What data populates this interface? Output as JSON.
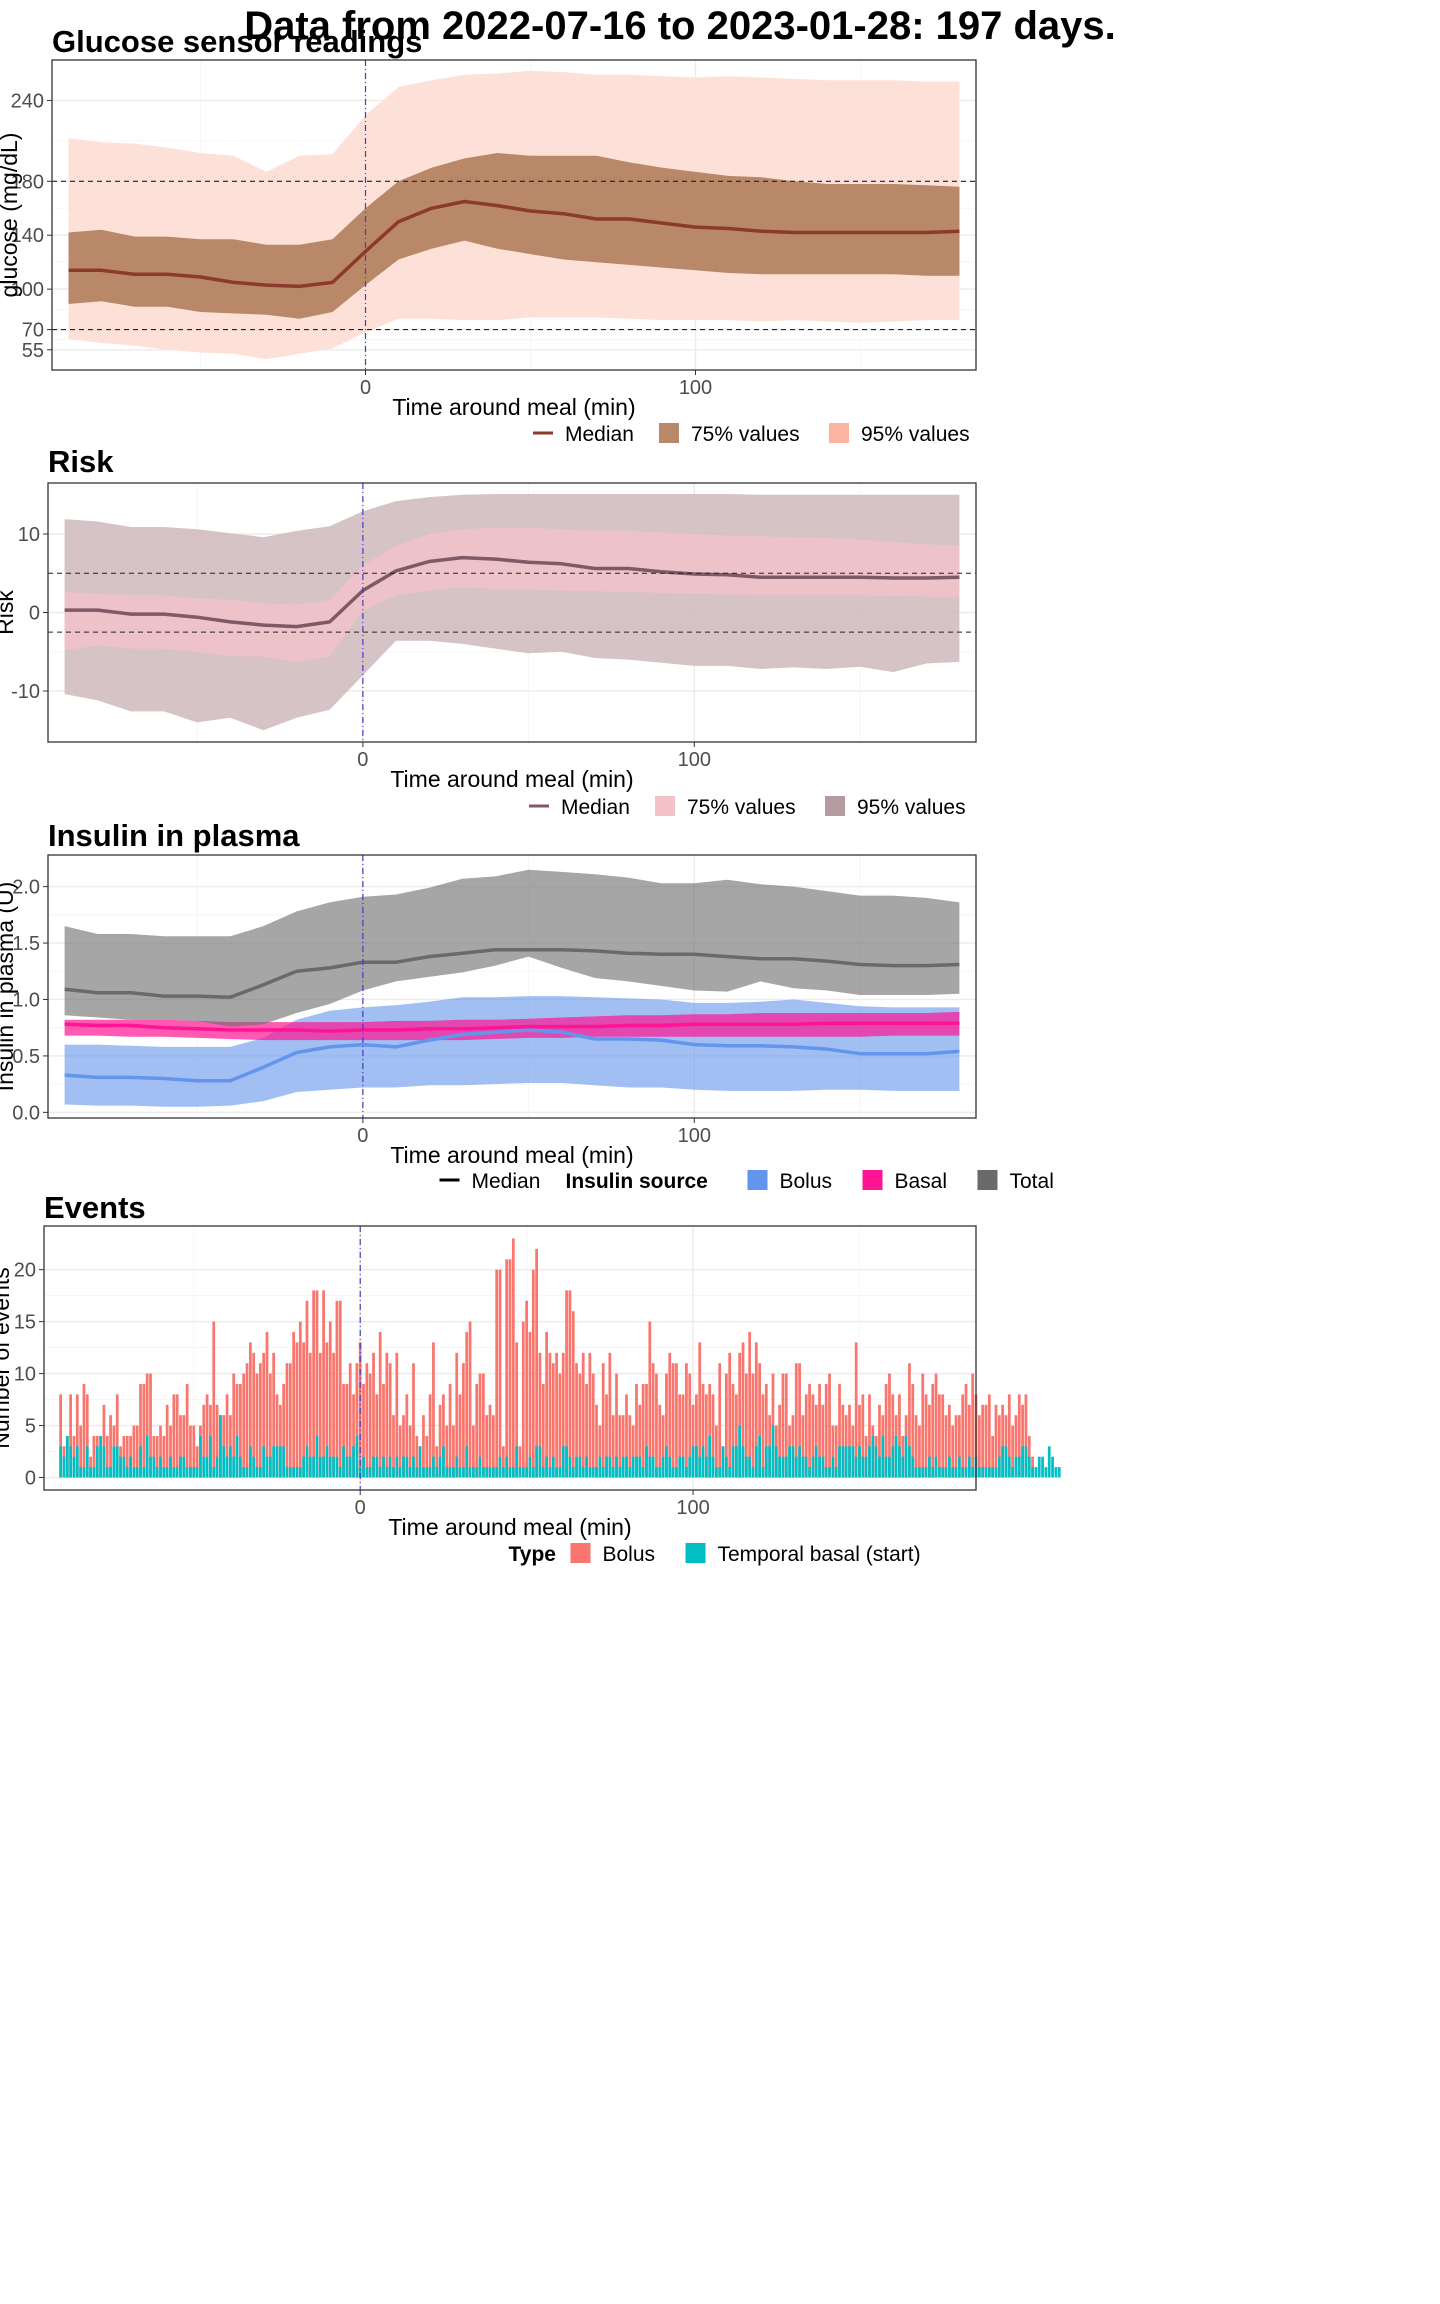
{
  "title": "Data from 2022-07-16 to 2023-01-28: 197 days.",
  "colors": {
    "glucose_median": "#8b3a2b",
    "glucose_75": "#b88868",
    "glucose_95": "#fde0d8",
    "risk_median": "#7d5a66",
    "risk_75": "#f4c2c9",
    "risk_95": "#cfb8bc",
    "bolus": "#6495ed",
    "basal": "#ff1493",
    "total": "#6a6a6a",
    "events_bolus": "#f8766d",
    "events_temp_basal": "#00bfc4",
    "meal_line": "#4b3bbf"
  },
  "chart_data": [
    {
      "id": "glucose",
      "type": "area",
      "title": "Glucose sensor readings",
      "xlabel": "Time around meal (min)",
      "ylabel": "glucose (mg/dL)",
      "xlim": [
        -95,
        185
      ],
      "ylim": [
        40,
        270
      ],
      "xticks": [
        0,
        100
      ],
      "yticks": [
        55,
        70,
        100,
        140,
        180,
        240
      ],
      "hlines": [
        70,
        180
      ],
      "vline": 0,
      "legend": [
        "Median",
        "75% values",
        "95% values"
      ],
      "x": [
        -90,
        -80,
        -70,
        -60,
        -50,
        -40,
        -30,
        -20,
        -10,
        0,
        10,
        20,
        30,
        40,
        50,
        60,
        70,
        80,
        90,
        100,
        110,
        120,
        130,
        140,
        150,
        160,
        170,
        180
      ],
      "median": [
        114,
        114,
        111,
        111,
        109,
        105,
        103,
        102,
        105,
        128,
        150,
        160,
        165,
        162,
        158,
        156,
        152,
        152,
        149,
        146,
        145,
        143,
        142,
        142,
        142,
        142,
        142,
        143
      ],
      "p75_low": [
        89,
        91,
        87,
        87,
        83,
        82,
        81,
        78,
        83,
        103,
        122,
        130,
        136,
        130,
        126,
        122,
        120,
        118,
        116,
        114,
        112,
        111,
        111,
        111,
        111,
        111,
        110,
        110
      ],
      "p75_high": [
        142,
        144,
        139,
        139,
        137,
        137,
        133,
        133,
        137,
        160,
        180,
        190,
        197,
        201,
        199,
        199,
        199,
        194,
        190,
        187,
        184,
        183,
        180,
        178,
        178,
        178,
        177,
        176
      ],
      "p95_low": [
        63,
        60,
        58,
        55,
        53,
        52,
        48,
        52,
        56,
        68,
        78,
        78,
        77,
        77,
        79,
        79,
        79,
        78,
        77,
        77,
        77,
        76,
        77,
        76,
        75,
        76,
        77,
        77
      ],
      "p95_high": [
        212,
        209,
        208,
        205,
        201,
        199,
        187,
        199,
        200,
        229,
        250,
        255,
        259,
        260,
        262,
        261,
        259,
        259,
        258,
        257,
        258,
        257,
        256,
        255,
        255,
        255,
        254,
        254
      ]
    },
    {
      "id": "risk",
      "type": "area",
      "title": "Risk",
      "xlabel": "Time around meal (min)",
      "ylabel": "Risk",
      "xlim": [
        -95,
        185
      ],
      "ylim": [
        -16.5,
        16.5
      ],
      "xticks": [
        0,
        100
      ],
      "yticks": [
        -10,
        0,
        10
      ],
      "hlines": [
        -2.5,
        5
      ],
      "vline": 0,
      "legend": [
        "Median",
        "75% values",
        "95% values"
      ],
      "x": [
        -90,
        -80,
        -70,
        -60,
        -50,
        -40,
        -30,
        -20,
        -10,
        0,
        10,
        20,
        30,
        40,
        50,
        60,
        70,
        80,
        90,
        100,
        110,
        120,
        130,
        140,
        150,
        160,
        170,
        180
      ],
      "median": [
        0.3,
        0.3,
        -0.2,
        -0.2,
        -0.6,
        -1.2,
        -1.6,
        -1.8,
        -1.2,
        2.8,
        5.3,
        6.5,
        7.0,
        6.8,
        6.4,
        6.2,
        5.6,
        5.6,
        5.2,
        4.9,
        4.8,
        4.5,
        4.5,
        4.5,
        4.5,
        4.4,
        4.4,
        4.5
      ],
      "p75_low": [
        -4.8,
        -4.2,
        -4.6,
        -4.6,
        -5.0,
        -5.6,
        -5.6,
        -6.4,
        -5.6,
        0.2,
        2.2,
        2.8,
        3.2,
        3.0,
        2.9,
        2.8,
        2.7,
        2.6,
        2.5,
        2.4,
        2.3,
        2.2,
        2.2,
        2.2,
        2.2,
        2.1,
        2.0,
        2.0
      ],
      "p75_high": [
        2.6,
        2.4,
        2.2,
        2.2,
        1.8,
        1.6,
        1.2,
        1.0,
        1.6,
        6.0,
        8.5,
        10.0,
        10.6,
        10.8,
        10.8,
        10.6,
        10.4,
        10.4,
        10.2,
        10.0,
        9.8,
        9.7,
        9.6,
        9.5,
        9.3,
        9.0,
        8.7,
        8.5
      ],
      "p95_low": [
        -10.4,
        -11.2,
        -12.6,
        -12.6,
        -14.0,
        -13.4,
        -15.0,
        -13.4,
        -12.4,
        -8.0,
        -3.6,
        -3.6,
        -4.0,
        -4.6,
        -5.2,
        -5.0,
        -5.8,
        -6.0,
        -6.4,
        -6.8,
        -6.8,
        -7.2,
        -7.0,
        -7.2,
        -6.9,
        -7.6,
        -6.5,
        -6.3
      ],
      "p95_high": [
        11.9,
        11.6,
        10.9,
        10.9,
        10.6,
        10.1,
        9.6,
        10.4,
        11.0,
        12.9,
        14.2,
        14.7,
        15.0,
        15.1,
        15.1,
        15.1,
        15.1,
        15.1,
        15.1,
        15.1,
        15.1,
        15.0,
        15.0,
        15.0,
        15.0,
        15.0,
        15.0,
        15.0
      ]
    },
    {
      "id": "insulin",
      "type": "area",
      "title": "Insulin in plasma",
      "xlabel": "Time around meal (min)",
      "ylabel": "Insulin in plasma (U)",
      "xlim": [
        -95,
        185
      ],
      "ylim": [
        -0.05,
        2.28
      ],
      "xticks": [
        0,
        100
      ],
      "yticks": [
        0.0,
        0.5,
        1.0,
        1.5,
        2.0
      ],
      "vline": 0,
      "legend_title": "Insulin source",
      "legend": [
        "Median",
        "Bolus",
        "Basal",
        "Total"
      ],
      "x": [
        -90,
        -80,
        -70,
        -60,
        -50,
        -40,
        -30,
        -20,
        -10,
        0,
        10,
        20,
        30,
        40,
        50,
        60,
        70,
        80,
        90,
        100,
        110,
        120,
        130,
        140,
        150,
        160,
        170,
        180
      ],
      "series": [
        {
          "name": "Bolus",
          "median": [
            0.33,
            0.31,
            0.31,
            0.3,
            0.28,
            0.28,
            0.4,
            0.53,
            0.58,
            0.6,
            0.58,
            0.64,
            0.69,
            0.71,
            0.73,
            0.71,
            0.65,
            0.65,
            0.64,
            0.6,
            0.59,
            0.59,
            0.58,
            0.56,
            0.52,
            0.52,
            0.52,
            0.54
          ],
          "low": [
            0.07,
            0.06,
            0.06,
            0.05,
            0.05,
            0.06,
            0.1,
            0.18,
            0.2,
            0.22,
            0.22,
            0.24,
            0.24,
            0.25,
            0.26,
            0.26,
            0.24,
            0.22,
            0.22,
            0.2,
            0.19,
            0.19,
            0.19,
            0.2,
            0.2,
            0.19,
            0.19,
            0.19
          ],
          "high": [
            0.6,
            0.6,
            0.59,
            0.58,
            0.58,
            0.58,
            0.66,
            0.82,
            0.9,
            0.93,
            0.95,
            0.98,
            1.02,
            1.02,
            1.03,
            1.03,
            1.02,
            1.01,
            1.0,
            0.97,
            0.97,
            0.98,
            1.0,
            0.97,
            0.94,
            0.93,
            0.93,
            0.93
          ]
        },
        {
          "name": "Basal",
          "median": [
            0.78,
            0.77,
            0.77,
            0.75,
            0.74,
            0.73,
            0.73,
            0.73,
            0.72,
            0.73,
            0.73,
            0.74,
            0.74,
            0.75,
            0.76,
            0.76,
            0.76,
            0.77,
            0.77,
            0.78,
            0.78,
            0.78,
            0.78,
            0.79,
            0.79,
            0.79,
            0.79,
            0.79
          ],
          "low": [
            0.68,
            0.68,
            0.67,
            0.67,
            0.66,
            0.65,
            0.64,
            0.64,
            0.64,
            0.64,
            0.64,
            0.64,
            0.64,
            0.65,
            0.66,
            0.66,
            0.67,
            0.67,
            0.67,
            0.67,
            0.67,
            0.67,
            0.67,
            0.67,
            0.67,
            0.68,
            0.68,
            0.68
          ],
          "high": [
            0.82,
            0.82,
            0.82,
            0.82,
            0.81,
            0.8,
            0.8,
            0.8,
            0.8,
            0.8,
            0.81,
            0.81,
            0.82,
            0.82,
            0.83,
            0.84,
            0.85,
            0.86,
            0.86,
            0.87,
            0.87,
            0.88,
            0.88,
            0.88,
            0.88,
            0.88,
            0.88,
            0.89
          ]
        },
        {
          "name": "Total",
          "median": [
            1.09,
            1.06,
            1.06,
            1.03,
            1.03,
            1.02,
            1.13,
            1.25,
            1.28,
            1.33,
            1.33,
            1.38,
            1.41,
            1.44,
            1.44,
            1.44,
            1.43,
            1.41,
            1.4,
            1.4,
            1.38,
            1.36,
            1.36,
            1.34,
            1.31,
            1.3,
            1.3,
            1.31
          ],
          "low": [
            0.86,
            0.84,
            0.82,
            0.82,
            0.81,
            0.76,
            0.78,
            0.88,
            0.96,
            1.08,
            1.16,
            1.2,
            1.24,
            1.3,
            1.38,
            1.28,
            1.19,
            1.16,
            1.12,
            1.08,
            1.07,
            1.16,
            1.1,
            1.08,
            1.04,
            1.04,
            1.04,
            1.05
          ],
          "high": [
            1.65,
            1.58,
            1.58,
            1.56,
            1.56,
            1.56,
            1.65,
            1.78,
            1.86,
            1.91,
            1.93,
            1.99,
            2.07,
            2.09,
            2.15,
            2.13,
            2.11,
            2.08,
            2.03,
            2.03,
            2.06,
            2.02,
            2.0,
            1.96,
            1.92,
            1.92,
            1.9,
            1.86
          ]
        }
      ]
    },
    {
      "id": "events",
      "type": "bar",
      "title": "Events",
      "xlabel": "Time around meal (min)",
      "ylabel": "Number of events",
      "xlim": [
        -95,
        185
      ],
      "ylim": [
        -1.2,
        24.2
      ],
      "xticks": [
        0,
        100
      ],
      "yticks": [
        0,
        5,
        10,
        15,
        20
      ],
      "vline": 0,
      "legend_title": "Type",
      "legend": [
        "Bolus",
        "Temporal basal (start)"
      ],
      "x_start": -90,
      "x_step": 1,
      "bolus": [
        8,
        3,
        4,
        8,
        4,
        8,
        5,
        9,
        8,
        2,
        4,
        4,
        3,
        7,
        4,
        6,
        5,
        8,
        3,
        4,
        4,
        4,
        5,
        5,
        9,
        9,
        10,
        10,
        4,
        4,
        5,
        4,
        7,
        5,
        8,
        8,
        6,
        6,
        9,
        5,
        5,
        3,
        5,
        7,
        8,
        7,
        15,
        7,
        6,
        6,
        8,
        6,
        10,
        9,
        9,
        10,
        11,
        13,
        12,
        10,
        11,
        12,
        14,
        10,
        12,
        8,
        7,
        9,
        11,
        11,
        14,
        13,
        15,
        13,
        17,
        12,
        18,
        18,
        12,
        18,
        13,
        15,
        12,
        17,
        17,
        9,
        9,
        11,
        8,
        11,
        13,
        9,
        11,
        10,
        12,
        8,
        14,
        9,
        12,
        11,
        6,
        12,
        5,
        6,
        8,
        5,
        11,
        4,
        3,
        6,
        4,
        8,
        13,
        3,
        7,
        8,
        5,
        9,
        5,
        12,
        8,
        11,
        14,
        15,
        5,
        9,
        10,
        10,
        6,
        7,
        6,
        20,
        20,
        3,
        21,
        21,
        23,
        13,
        3,
        15,
        17,
        14,
        20,
        22,
        12,
        9,
        14,
        12,
        11,
        12,
        10,
        12,
        18,
        18,
        16,
        11,
        10,
        12,
        9,
        12,
        10,
        7,
        5,
        11,
        8,
        12,
        6,
        10,
        6,
        6,
        8,
        6,
        5,
        9,
        7,
        9,
        9,
        15,
        11,
        10,
        7,
        6,
        10,
        12,
        11,
        11,
        8,
        8,
        11,
        10,
        7,
        8,
        13,
        9,
        8,
        9,
        8,
        5,
        11,
        3,
        10,
        12,
        9,
        8,
        12,
        13,
        10,
        14,
        10,
        13,
        11,
        8,
        9,
        6,
        10,
        5,
        7,
        10,
        10,
        5,
        6,
        11,
        11,
        6,
        8,
        9,
        8,
        7,
        9,
        7,
        9,
        10,
        5,
        5,
        9,
        7,
        6,
        7,
        5,
        13,
        7,
        8,
        4,
        8,
        5,
        4,
        7,
        6,
        9,
        10,
        8,
        6,
        8,
        4,
        6,
        11,
        9,
        6,
        5,
        10,
        8,
        7,
        9,
        10,
        8,
        8,
        6,
        7,
        5,
        6,
        6,
        8,
        9,
        7,
        10,
        8,
        6,
        7,
        7,
        8,
        4,
        7,
        6,
        7,
        6,
        8,
        5,
        6,
        8,
        7,
        8,
        4,
        2
      ],
      "temporal_basal": [
        3,
        2,
        4,
        3,
        2,
        3,
        1,
        1,
        3,
        1,
        1,
        3,
        4,
        3,
        1,
        1,
        3,
        3,
        2,
        2,
        1,
        2,
        1,
        1,
        3,
        1,
        4,
        2,
        2,
        1,
        2,
        1,
        1,
        2,
        1,
        1,
        2,
        2,
        1,
        1,
        1,
        1,
        4,
        2,
        2,
        4,
        1,
        2,
        6,
        3,
        2,
        3,
        2,
        4,
        2,
        1,
        1,
        3,
        2,
        1,
        1,
        3,
        2,
        2,
        3,
        3,
        3,
        3,
        1,
        1,
        1,
        1,
        1,
        2,
        3,
        2,
        2,
        4,
        2,
        2,
        3,
        2,
        2,
        2,
        1,
        3,
        2,
        2,
        3,
        4,
        1,
        2,
        1,
        1,
        2,
        2,
        1,
        2,
        1,
        2,
        1,
        2,
        1,
        2,
        2,
        1,
        2,
        1,
        3,
        1,
        1,
        1,
        2,
        1,
        2,
        3,
        1,
        1,
        1,
        2,
        1,
        1,
        3,
        1,
        1,
        1,
        2,
        1,
        1,
        1,
        1,
        1,
        2,
        1,
        2,
        1,
        1,
        3,
        1,
        1,
        1,
        2,
        1,
        3,
        3,
        1,
        2,
        1,
        2,
        1,
        1,
        3,
        3,
        2,
        1,
        2,
        2,
        1,
        2,
        1,
        1,
        1,
        2,
        1,
        2,
        2,
        1,
        2,
        1,
        2,
        2,
        1,
        2,
        2,
        2,
        1,
        3,
        2,
        2,
        1,
        1,
        2,
        3,
        2,
        1,
        1,
        2,
        2,
        1,
        2,
        3,
        3,
        2,
        3,
        2,
        4,
        2,
        1,
        1,
        3,
        2,
        1,
        3,
        3,
        5,
        3,
        2,
        2,
        1,
        3,
        4,
        1,
        3,
        3,
        5,
        3,
        2,
        2,
        2,
        3,
        3,
        2,
        3,
        2,
        2,
        1,
        2,
        3,
        2,
        2,
        1,
        1,
        2,
        1,
        3,
        3,
        3,
        3,
        3,
        2,
        3,
        2,
        2,
        3,
        4,
        3,
        2,
        4,
        2,
        2,
        3,
        4,
        3,
        2,
        4,
        3,
        2,
        1,
        1,
        1,
        1,
        2,
        1,
        2,
        1,
        1,
        1,
        2,
        1,
        1,
        2,
        1,
        1,
        2,
        1,
        2,
        1,
        1,
        1,
        1,
        1,
        1,
        2,
        3,
        3,
        2,
        1,
        2,
        2,
        3,
        3,
        2,
        1,
        1,
        2,
        2,
        1,
        3,
        2,
        1,
        1
      ]
    }
  ]
}
